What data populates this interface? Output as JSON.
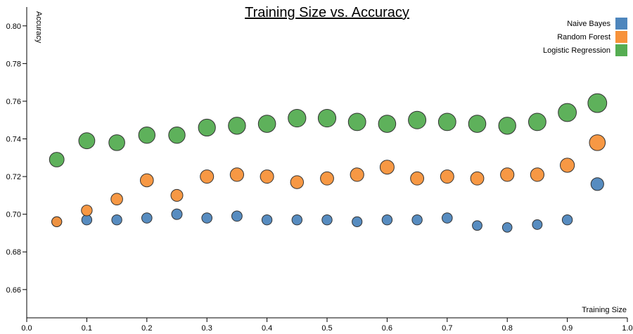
{
  "chart_data": {
    "type": "scatter",
    "title": "Training Size vs. Accuracy",
    "xlabel": "Training Size",
    "ylabel": "Accuracy",
    "xlim": [
      0.0,
      1.0
    ],
    "ylim": [
      0.645,
      0.81
    ],
    "x_ticks": [
      "0.0",
      "0.1",
      "0.2",
      "0.3",
      "0.4",
      "0.5",
      "0.6",
      "0.7",
      "0.8",
      "0.9",
      "1.0"
    ],
    "y_ticks": [
      "0.66",
      "0.68",
      "0.70",
      "0.72",
      "0.74",
      "0.76",
      "0.78",
      "0.80"
    ],
    "grid": false,
    "legend_position": "top-right",
    "marker_size_encodes": "accuracy",
    "x": [
      0.05,
      0.1,
      0.15,
      0.2,
      0.25,
      0.3,
      0.35,
      0.4,
      0.45,
      0.5,
      0.55,
      0.6,
      0.65,
      0.7,
      0.75,
      0.8,
      0.85,
      0.9,
      0.95
    ],
    "series": [
      {
        "name": "Naive Bayes",
        "color": "#4e86bd",
        "values": [
          0.696,
          0.697,
          0.697,
          0.698,
          0.7,
          0.698,
          0.699,
          0.697,
          0.697,
          0.697,
          0.696,
          0.697,
          0.697,
          0.698,
          0.694,
          0.693,
          0.6945,
          0.697,
          0.716
        ]
      },
      {
        "name": "Random Forest",
        "color": "#f7923a",
        "values": [
          0.696,
          0.702,
          0.708,
          0.718,
          0.71,
          0.72,
          0.721,
          0.72,
          0.717,
          0.719,
          0.721,
          0.725,
          0.719,
          0.72,
          0.719,
          0.721,
          0.721,
          0.726,
          0.738
        ]
      },
      {
        "name": "Logistic Regression",
        "color": "#55ad52",
        "values": [
          0.729,
          0.739,
          0.738,
          0.742,
          0.742,
          0.746,
          0.747,
          0.748,
          0.751,
          0.751,
          0.749,
          0.748,
          0.75,
          0.749,
          0.748,
          0.747,
          0.749,
          0.754,
          0.759
        ]
      }
    ]
  }
}
